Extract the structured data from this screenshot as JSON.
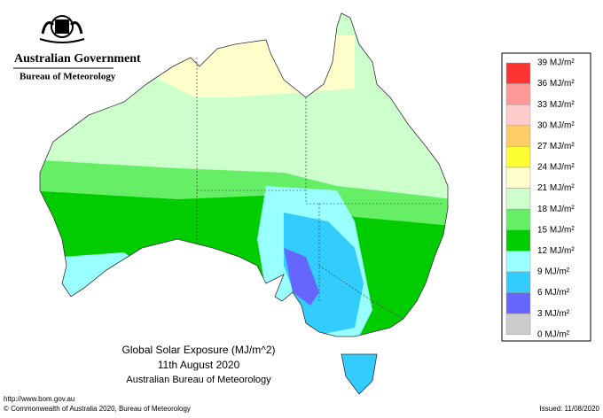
{
  "header": {
    "government": "Australian Government",
    "agency": "Bureau of Meteorology"
  },
  "map": {
    "title": "Global Solar Exposure (MJ/m^2)",
    "date": "11th August 2020",
    "source": "Australian Bureau of Meteorology"
  },
  "legend": {
    "labels": [
      "39 MJ/m²",
      "36 MJ/m²",
      "33 MJ/m²",
      "30 MJ/m²",
      "27 MJ/m²",
      "24 MJ/m²",
      "21 MJ/m²",
      "18 MJ/m²",
      "15 MJ/m²",
      "12 MJ/m²",
      "9 MJ/m²",
      "6 MJ/m²",
      "3 MJ/m²",
      "0 MJ/m²"
    ],
    "colors": [
      "#ff3333",
      "#ff9999",
      "#ffcccc",
      "#ffcc66",
      "#ffff33",
      "#ffffcc",
      "#ccffcc",
      "#66ee66",
      "#00cc00",
      "#99ffff",
      "#33ccff",
      "#6666ff",
      "#cccccc"
    ]
  },
  "footer": {
    "url": "http://www.bom.gov.au",
    "copyright": "© Commonwealth of Australia 2020, Bureau of Meteorology",
    "issued": "Issued: 11/08/2020"
  }
}
